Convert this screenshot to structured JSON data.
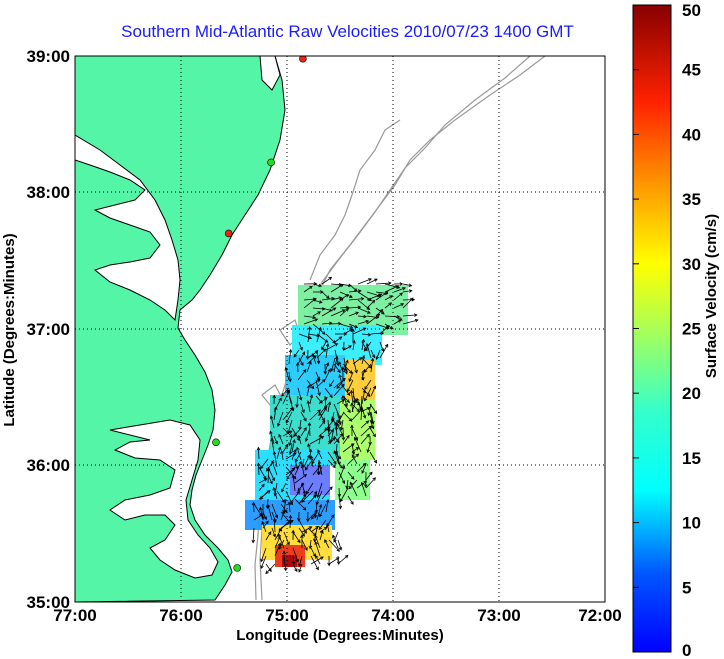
{
  "title": "Southern Mid-Atlantic Raw Velocities 2010/07/23 1400 GMT",
  "xlabel": "Longitude (Degrees:Minutes)",
  "ylabel": "Latitude (Degrees:Minutes)",
  "x_ticks": [
    "77:00",
    "76:00",
    "75:00",
    "74:00",
    "73:00",
    "72:00"
  ],
  "y_ticks": [
    "39:00",
    "38:00",
    "37:00",
    "36:00",
    "35:00"
  ],
  "colorbar": {
    "label": "Surface Velocity (cm/s)",
    "ticks": [
      "50",
      "45",
      "40",
      "35",
      "30",
      "25",
      "20",
      "15",
      "10",
      "5",
      "0"
    ],
    "min": 0,
    "max": 50,
    "colormap": "jet"
  },
  "colors": {
    "land": "#55f5a8",
    "water": "#ffffff",
    "coastline": "#000000",
    "bathymetry": "#999999",
    "title": "#1a1aff",
    "station_green": "#22dd22",
    "station_red": "#ee2211"
  },
  "map_extent": {
    "lon_west": -77,
    "lon_east": -72,
    "lat_south": 35,
    "lat_north": 39
  },
  "stations": [
    {
      "lon": -74.85,
      "lat": 38.98,
      "status": "red"
    },
    {
      "lon": -75.15,
      "lat": 38.22,
      "status": "green"
    },
    {
      "lon": -75.55,
      "lat": 37.7,
      "status": "red"
    },
    {
      "lon": -75.67,
      "lat": 36.17,
      "status": "green"
    },
    {
      "lon": -75.47,
      "lat": 35.25,
      "status": "green"
    }
  ]
}
